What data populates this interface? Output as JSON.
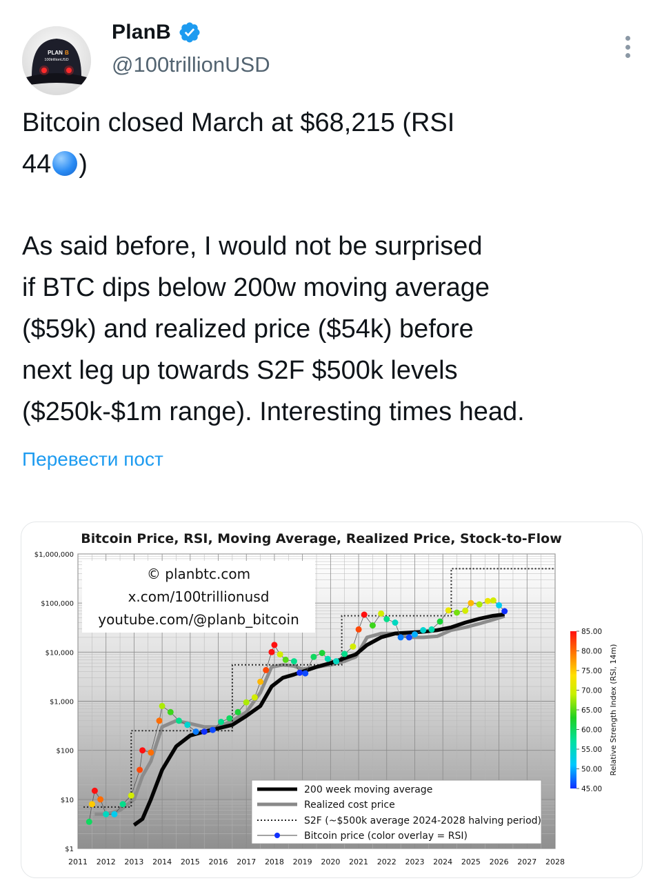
{
  "author": {
    "name": "PlanB",
    "handle": "@100trillionUSD",
    "avatar_text": [
      "PLAN",
      "100trillionUSD"
    ]
  },
  "tweet": {
    "line1": "Bitcoin closed March at $68,215 (RSI",
    "line2a": "44",
    "line2b": ")",
    "para2": [
      "As said before, I would not be surprised",
      "if BTC dips below 200w moving average",
      "($59k) and realized price ($54k) before",
      "next leg up towards S2F $500k levels",
      "($250k-$1m range). Interesting times head."
    ],
    "translate_link": "Перевести пост"
  },
  "colors": {
    "accent": "#1d9bf0",
    "verified": "#1d9bf0",
    "rsi_dot": "#2b8cf4"
  },
  "chart_data": {
    "type": "line",
    "title": "Bitcoin Price, RSI, Moving Average, Realized Price, Stock-to-Flow",
    "watermark": [
      "© planbtc.com",
      "x.com/100trillionusd",
      "youtube.com/@planb_bitcoin"
    ],
    "y_scale": "log",
    "ylim": [
      1,
      1000000
    ],
    "y_ticks": [
      {
        "v": 1,
        "label": "$1"
      },
      {
        "v": 10,
        "label": "$10"
      },
      {
        "v": 100,
        "label": "$100"
      },
      {
        "v": 1000,
        "label": "$1,000"
      },
      {
        "v": 10000,
        "label": "$10,000"
      },
      {
        "v": 100000,
        "label": "$100,000"
      },
      {
        "v": 1000000,
        "label": "$1,000,000"
      }
    ],
    "xlim": [
      2011,
      2028
    ],
    "x_ticks": [
      "2011",
      "2012",
      "2013",
      "2014",
      "2015",
      "2016",
      "2017",
      "2018",
      "2019",
      "2020",
      "2021",
      "2022",
      "2023",
      "2024",
      "2025",
      "2026",
      "2027",
      "2028"
    ],
    "legend": {
      "placement": "bottom-right",
      "entries": [
        "200 week moving average",
        "Realized cost price",
        "S2F (~$500k average 2024-2028 halving period)",
        "Bitcoin price (color overlay = RSI)"
      ]
    },
    "colorbar": {
      "label": "Relative Strength Index (RSI, 14m)",
      "ticks": [
        "85.00",
        "80.00",
        "75.00",
        "70.00",
        "65.00",
        "60.00",
        "55.00",
        "50.00",
        "45.00"
      ],
      "range": [
        45,
        85
      ]
    },
    "series": [
      {
        "name": "200 week moving average",
        "style": "solid-black-thick",
        "points": [
          [
            2013.0,
            3
          ],
          [
            2013.3,
            4
          ],
          [
            2013.6,
            10
          ],
          [
            2014.0,
            40
          ],
          [
            2014.5,
            120
          ],
          [
            2015.0,
            200
          ],
          [
            2015.5,
            240
          ],
          [
            2016.0,
            280
          ],
          [
            2016.5,
            330
          ],
          [
            2017.0,
            500
          ],
          [
            2017.5,
            800
          ],
          [
            2017.9,
            2000
          ],
          [
            2018.3,
            3000
          ],
          [
            2018.7,
            3500
          ],
          [
            2019.0,
            4000
          ],
          [
            2019.5,
            5000
          ],
          [
            2020.0,
            6000
          ],
          [
            2020.5,
            7500
          ],
          [
            2020.9,
            9000
          ],
          [
            2021.3,
            14000
          ],
          [
            2021.8,
            20000
          ],
          [
            2022.3,
            24000
          ],
          [
            2022.8,
            25000
          ],
          [
            2023.3,
            26000
          ],
          [
            2023.8,
            28000
          ],
          [
            2024.3,
            32000
          ],
          [
            2024.8,
            40000
          ],
          [
            2025.3,
            48000
          ],
          [
            2025.8,
            55000
          ],
          [
            2026.2,
            59000
          ]
        ]
      },
      {
        "name": "Realized cost price",
        "style": "solid-gray-thick",
        "points": [
          [
            2011.6,
            5
          ],
          [
            2012.0,
            5
          ],
          [
            2012.5,
            6
          ],
          [
            2013.0,
            10
          ],
          [
            2013.3,
            30
          ],
          [
            2013.6,
            60
          ],
          [
            2014.0,
            300
          ],
          [
            2014.5,
            400
          ],
          [
            2015.0,
            350
          ],
          [
            2015.5,
            300
          ],
          [
            2016.0,
            300
          ],
          [
            2016.5,
            400
          ],
          [
            2017.0,
            600
          ],
          [
            2017.5,
            1500
          ],
          [
            2017.9,
            5000
          ],
          [
            2018.3,
            5500
          ],
          [
            2018.7,
            5200
          ],
          [
            2019.0,
            4500
          ],
          [
            2019.5,
            5000
          ],
          [
            2020.0,
            5500
          ],
          [
            2020.5,
            6500
          ],
          [
            2020.9,
            8000
          ],
          [
            2021.3,
            20000
          ],
          [
            2021.8,
            24000
          ],
          [
            2022.3,
            24000
          ],
          [
            2022.8,
            20000
          ],
          [
            2023.3,
            20000
          ],
          [
            2023.8,
            21000
          ],
          [
            2024.3,
            28000
          ],
          [
            2024.8,
            32000
          ],
          [
            2025.3,
            38000
          ],
          [
            2025.8,
            46000
          ],
          [
            2026.2,
            54000
          ]
        ]
      },
      {
        "name": "S2F (~$500k average 2024-2028 halving period)",
        "style": "dotted",
        "points": [
          [
            2011.2,
            7
          ],
          [
            2012.9,
            7
          ],
          [
            2012.9,
            250
          ],
          [
            2016.5,
            250
          ],
          [
            2016.5,
            5500
          ],
          [
            2020.4,
            5500
          ],
          [
            2020.4,
            55000
          ],
          [
            2024.3,
            55000
          ],
          [
            2024.3,
            500000
          ],
          [
            2028.0,
            500000
          ]
        ]
      },
      {
        "name": "Bitcoin price (color overlay = RSI)",
        "style": "rsi-dots",
        "points": [
          [
            2011.4,
            3.5,
            60
          ],
          [
            2011.5,
            8,
            75
          ],
          [
            2011.6,
            15,
            85
          ],
          [
            2011.8,
            10,
            80
          ],
          [
            2012.0,
            5,
            55
          ],
          [
            2012.3,
            5,
            52
          ],
          [
            2012.6,
            8,
            58
          ],
          [
            2012.9,
            12,
            70
          ],
          [
            2013.2,
            40,
            82
          ],
          [
            2013.3,
            100,
            90
          ],
          [
            2013.6,
            90,
            80
          ],
          [
            2013.9,
            400,
            80
          ],
          [
            2014.0,
            800,
            68
          ],
          [
            2014.3,
            600,
            64
          ],
          [
            2014.6,
            400,
            58
          ],
          [
            2014.9,
            330,
            54
          ],
          [
            2015.2,
            240,
            48
          ],
          [
            2015.5,
            240,
            45
          ],
          [
            2015.8,
            260,
            46
          ],
          [
            2016.1,
            380,
            58
          ],
          [
            2016.4,
            450,
            60
          ],
          [
            2016.7,
            600,
            62
          ],
          [
            2017.0,
            950,
            68
          ],
          [
            2017.3,
            1200,
            70
          ],
          [
            2017.5,
            2500,
            76
          ],
          [
            2017.7,
            4300,
            82
          ],
          [
            2017.9,
            10000,
            88
          ],
          [
            2018.0,
            14000,
            90
          ],
          [
            2018.2,
            9000,
            70
          ],
          [
            2018.4,
            7000,
            65
          ],
          [
            2018.7,
            6500,
            58
          ],
          [
            2018.9,
            3800,
            45
          ],
          [
            2019.1,
            3700,
            46
          ],
          [
            2019.4,
            8000,
            60
          ],
          [
            2019.7,
            9600,
            62
          ],
          [
            2019.9,
            7300,
            56
          ],
          [
            2020.2,
            6500,
            55
          ],
          [
            2020.5,
            9200,
            58
          ],
          [
            2020.8,
            13000,
            70
          ],
          [
            2021.0,
            29000,
            82
          ],
          [
            2021.2,
            58000,
            90
          ],
          [
            2021.5,
            35000,
            64
          ],
          [
            2021.8,
            61000,
            70
          ],
          [
            2022.0,
            47000,
            58
          ],
          [
            2022.3,
            40000,
            55
          ],
          [
            2022.5,
            20000,
            48
          ],
          [
            2022.8,
            20000,
            46
          ],
          [
            2023.0,
            23000,
            50
          ],
          [
            2023.3,
            28000,
            54
          ],
          [
            2023.6,
            29000,
            56
          ],
          [
            2023.9,
            42000,
            62
          ],
          [
            2024.2,
            71000,
            72
          ],
          [
            2024.5,
            64000,
            66
          ],
          [
            2024.8,
            70000,
            70
          ],
          [
            2025.0,
            100000,
            76
          ],
          [
            2025.3,
            94000,
            68
          ],
          [
            2025.6,
            110000,
            72
          ],
          [
            2025.8,
            113000,
            70
          ],
          [
            2026.0,
            90000,
            52
          ],
          [
            2026.2,
            68215,
            44
          ]
        ]
      }
    ]
  }
}
